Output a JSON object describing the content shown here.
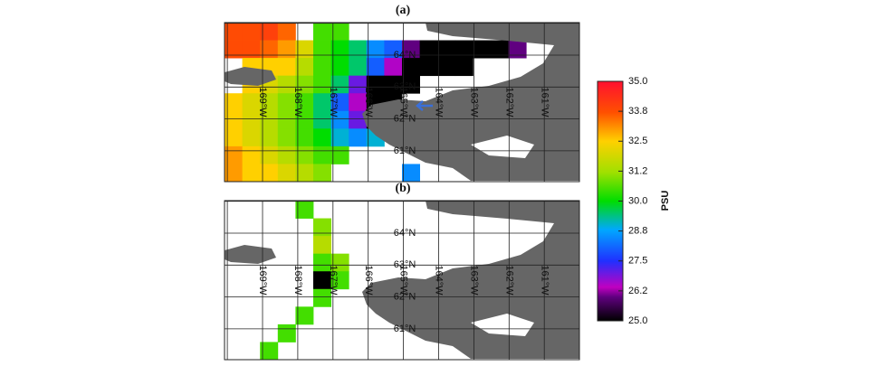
{
  "panels": [
    {
      "label": "(a)",
      "lat_labels": [
        "64°N",
        "63°N",
        "62°N",
        "61°N"
      ],
      "lon_labels": [
        "169°W",
        "168°W",
        "167°W",
        "166°W",
        "165°W",
        "164°W",
        "163°W",
        "162°W",
        "161°W"
      ],
      "cells": [
        [
          33.8,
          33.8,
          34,
          33.5,
          null,
          30.5,
          30.5,
          null,
          null,
          null,
          null,
          null,
          null,
          null,
          null,
          null,
          null,
          null,
          null,
          null
        ],
        [
          33.8,
          33.8,
          33.5,
          33,
          32,
          30.5,
          30,
          29.5,
          28.5,
          28,
          26,
          25,
          25,
          25,
          25,
          25,
          26,
          null,
          null,
          null
        ],
        [
          null,
          32.5,
          32.5,
          32.5,
          31.5,
          30.5,
          30,
          29.5,
          28,
          26.5,
          25,
          25,
          25,
          25,
          null,
          null,
          null,
          null,
          null,
          null
        ],
        [
          null,
          32.5,
          32,
          31.5,
          31,
          30.5,
          29.5,
          27,
          25,
          25,
          25,
          null,
          null,
          null,
          null,
          null,
          null,
          null,
          null,
          null
        ],
        [
          32.5,
          32,
          31.5,
          31,
          30.5,
          29.5,
          28,
          26.5,
          25,
          25,
          null,
          null,
          null,
          null,
          null,
          null,
          null,
          null,
          null,
          null
        ],
        [
          32.5,
          32,
          31.5,
          31,
          30.5,
          29.5,
          28.5,
          27,
          25,
          26,
          null,
          null,
          null,
          null,
          null,
          null,
          null,
          null,
          null,
          null
        ],
        [
          32.5,
          32,
          31.5,
          31,
          30.5,
          30,
          29,
          28.5,
          29,
          null,
          null,
          null,
          null,
          null,
          null,
          null,
          null,
          null,
          null,
          null
        ],
        [
          33,
          32.5,
          32,
          31.5,
          31,
          30.5,
          30.5,
          null,
          null,
          null,
          null,
          null,
          null,
          null,
          null,
          null,
          null,
          null,
          null,
          null
        ],
        [
          33,
          32.5,
          32.5,
          32,
          31.5,
          31,
          null,
          null,
          null,
          null,
          28.5,
          null,
          null,
          null,
          null,
          null,
          null,
          null,
          null,
          null
        ]
      ]
    },
    {
      "label": "(b)",
      "lat_labels": [
        "64°N",
        "63°N",
        "62°N",
        "61°N"
      ],
      "lon_labels": [
        "169°W",
        "168°W",
        "167°W",
        "166°W",
        "165°W",
        "164°W",
        "163°W",
        "162°W",
        "161°W"
      ],
      "cells": [
        [
          null,
          null,
          null,
          null,
          30.5,
          null,
          null,
          null,
          null,
          null,
          null,
          null,
          null,
          null,
          null,
          null,
          null,
          null,
          null,
          null
        ],
        [
          null,
          null,
          null,
          null,
          null,
          31,
          null,
          null,
          null,
          null,
          null,
          null,
          null,
          null,
          null,
          null,
          null,
          null,
          null,
          null
        ],
        [
          null,
          null,
          null,
          null,
          null,
          31.5,
          null,
          null,
          null,
          null,
          null,
          null,
          null,
          null,
          null,
          null,
          null,
          null,
          null,
          null
        ],
        [
          null,
          null,
          null,
          null,
          null,
          30.5,
          31,
          null,
          null,
          null,
          null,
          null,
          null,
          null,
          null,
          null,
          null,
          null,
          null,
          null
        ],
        [
          null,
          null,
          null,
          null,
          null,
          25,
          30.5,
          null,
          null,
          null,
          null,
          null,
          null,
          null,
          null,
          null,
          null,
          null,
          null,
          null
        ],
        [
          null,
          null,
          null,
          null,
          null,
          30.5,
          null,
          null,
          null,
          null,
          null,
          null,
          null,
          null,
          null,
          null,
          null,
          null,
          null,
          null
        ],
        [
          null,
          null,
          null,
          null,
          30.5,
          null,
          null,
          null,
          null,
          null,
          null,
          null,
          null,
          null,
          null,
          null,
          null,
          null,
          null,
          null
        ],
        [
          null,
          null,
          null,
          30.5,
          null,
          null,
          null,
          null,
          null,
          null,
          null,
          null,
          null,
          null,
          null,
          null,
          null,
          null,
          null,
          null
        ],
        [
          null,
          null,
          30.5,
          null,
          null,
          null,
          null,
          null,
          null,
          null,
          null,
          null,
          null,
          null,
          null,
          null,
          null,
          null,
          null,
          null
        ]
      ]
    }
  ],
  "colorbar": {
    "title": "PSU",
    "lim": [
      25,
      35
    ],
    "ticks": [
      {
        "value": 35,
        "label": "35.0"
      },
      {
        "value": 33.75,
        "label": "33.8"
      },
      {
        "value": 32.5,
        "label": "32.5"
      },
      {
        "value": 31.25,
        "label": "31.2"
      },
      {
        "value": 30,
        "label": "30.0"
      },
      {
        "value": 28.75,
        "label": "28.8"
      },
      {
        "value": 27.5,
        "label": "27.5"
      },
      {
        "value": 26.25,
        "label": "26.2"
      },
      {
        "value": 25,
        "label": "25.0"
      }
    ]
  }
}
